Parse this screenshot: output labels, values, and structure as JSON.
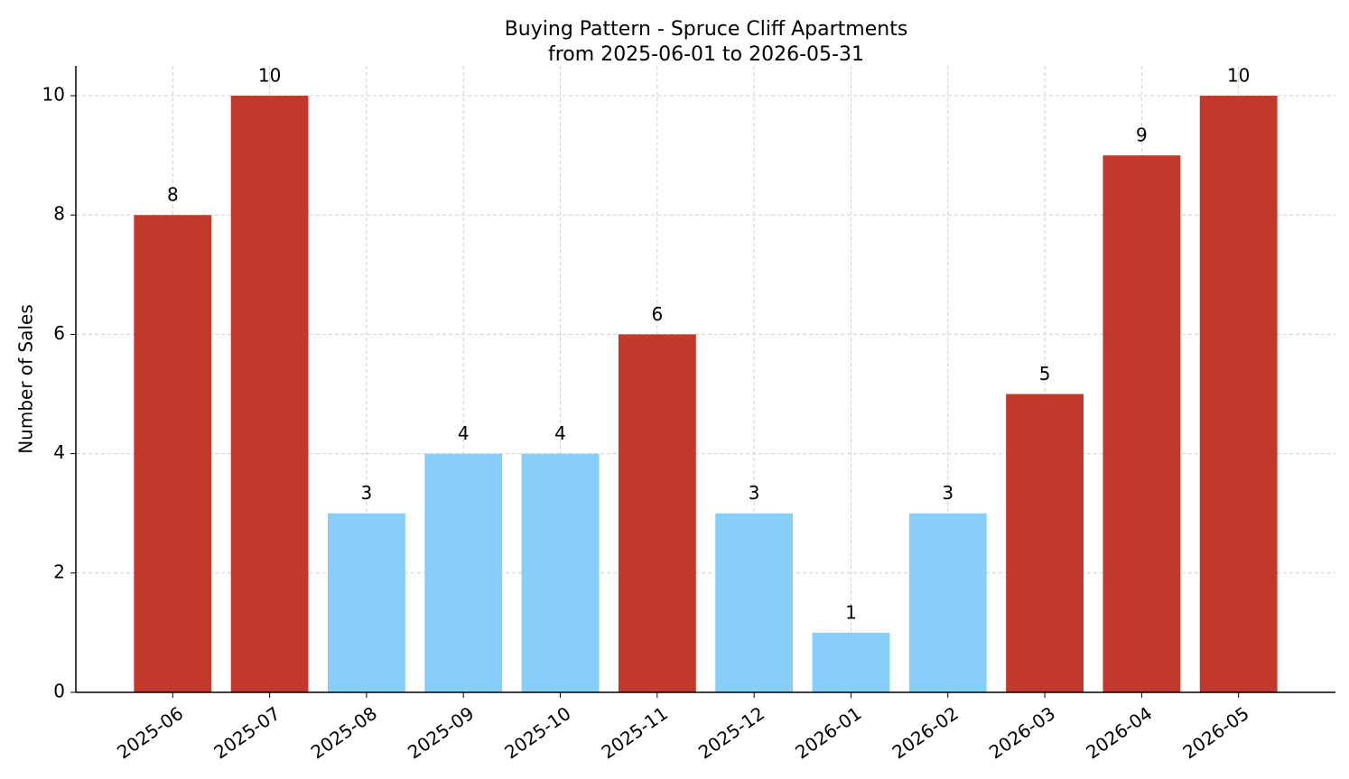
{
  "chart_data": {
    "type": "bar",
    "title": "Buying Pattern - Spruce Cliff Apartments",
    "subtitle": "from 2025-06-01 to 2026-05-31",
    "y_label": "Number of Sales",
    "categories": [
      "2025-06",
      "2025-07",
      "2025-08",
      "2025-09",
      "2025-10",
      "2025-11",
      "2025-12",
      "2026-01",
      "2026-02",
      "2026-03",
      "2026-04",
      "2026-05"
    ],
    "values": [
      8,
      10,
      3,
      4,
      4,
      6,
      3,
      1,
      3,
      5,
      9,
      10
    ],
    "colors": [
      "#c0392b",
      "#c0392b",
      "#87cefa",
      "#87cefa",
      "#87cefa",
      "#c0392b",
      "#87cefa",
      "#87cefa",
      "#87cefa",
      "#c0392b",
      "#c0392b",
      "#c0392b"
    ],
    "ylim": [
      0,
      10.5
    ],
    "yticks": [
      0,
      2,
      4,
      6,
      8,
      10
    ],
    "grid": true
  }
}
